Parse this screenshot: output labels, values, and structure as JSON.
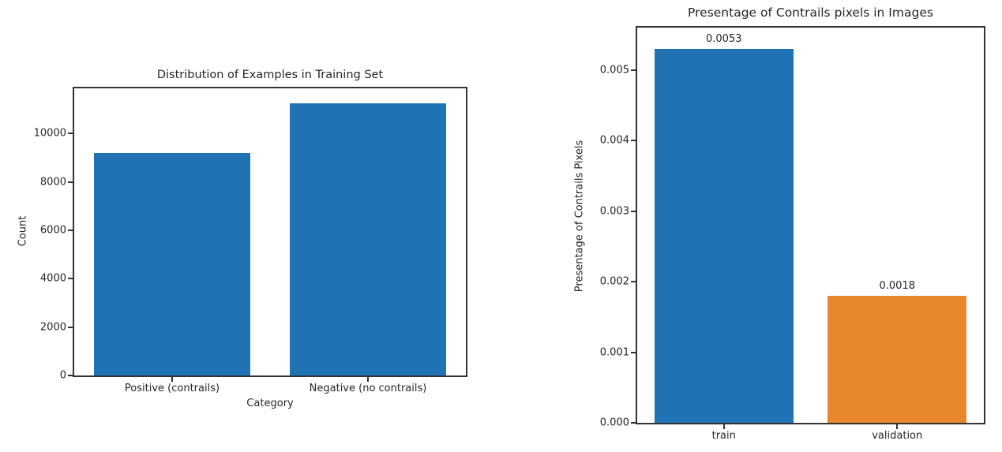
{
  "style": {
    "background": "#ffffff",
    "axis_color": "#333333",
    "text_color": "#262626",
    "bar_blue": "#1f73b4",
    "bar_orange": "#e8862d"
  },
  "chart_data": [
    {
      "type": "bar",
      "title": "Distribution of Examples in Training Set",
      "xlabel": "Category",
      "ylabel": "Count",
      "categories": [
        "Positive (contrails)",
        "Negative (no contrails)"
      ],
      "values": [
        9200,
        11250
      ],
      "bar_colors": [
        "#1f73b4",
        "#1f73b4"
      ],
      "bar_labels": null,
      "yticks": [
        0,
        2000,
        4000,
        6000,
        8000,
        10000
      ],
      "ytick_labels": [
        "0",
        "2000",
        "4000",
        "6000",
        "8000",
        "10000"
      ],
      "ylim": [
        0,
        11870
      ],
      "grid": false,
      "legend": null
    },
    {
      "type": "bar",
      "title": "Presentage of Contrails pixels in Images",
      "xlabel": "",
      "ylabel": "Presentage of Contrails Pixels",
      "categories": [
        "train",
        "validation"
      ],
      "values": [
        0.0053,
        0.0018
      ],
      "bar_colors": [
        "#1f73b4",
        "#e8862d"
      ],
      "bar_labels": [
        "0.0053",
        "0.0018"
      ],
      "yticks": [
        0.0,
        0.001,
        0.002,
        0.003,
        0.004,
        0.005
      ],
      "ytick_labels": [
        "0.000",
        "0.001",
        "0.002",
        "0.003",
        "0.004",
        "0.005"
      ],
      "ylim": [
        0,
        0.0056
      ],
      "grid": false,
      "legend": null
    }
  ]
}
